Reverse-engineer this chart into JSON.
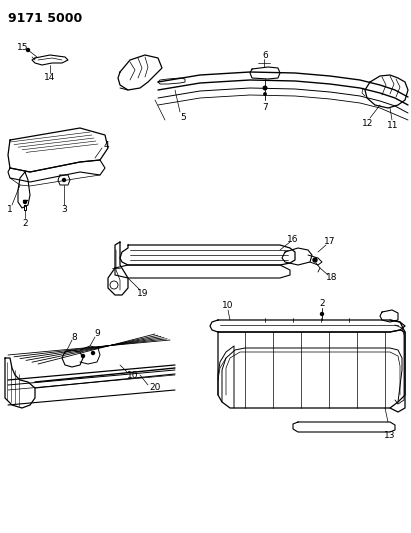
{
  "title": "9171 5000",
  "bg_color": "#ffffff",
  "line_color": "#000000",
  "fig_width": 4.11,
  "fig_height": 5.33,
  "dpi": 100,
  "title_fontsize": 9,
  "title_fontweight": "bold",
  "label_fontsize": 6.5
}
